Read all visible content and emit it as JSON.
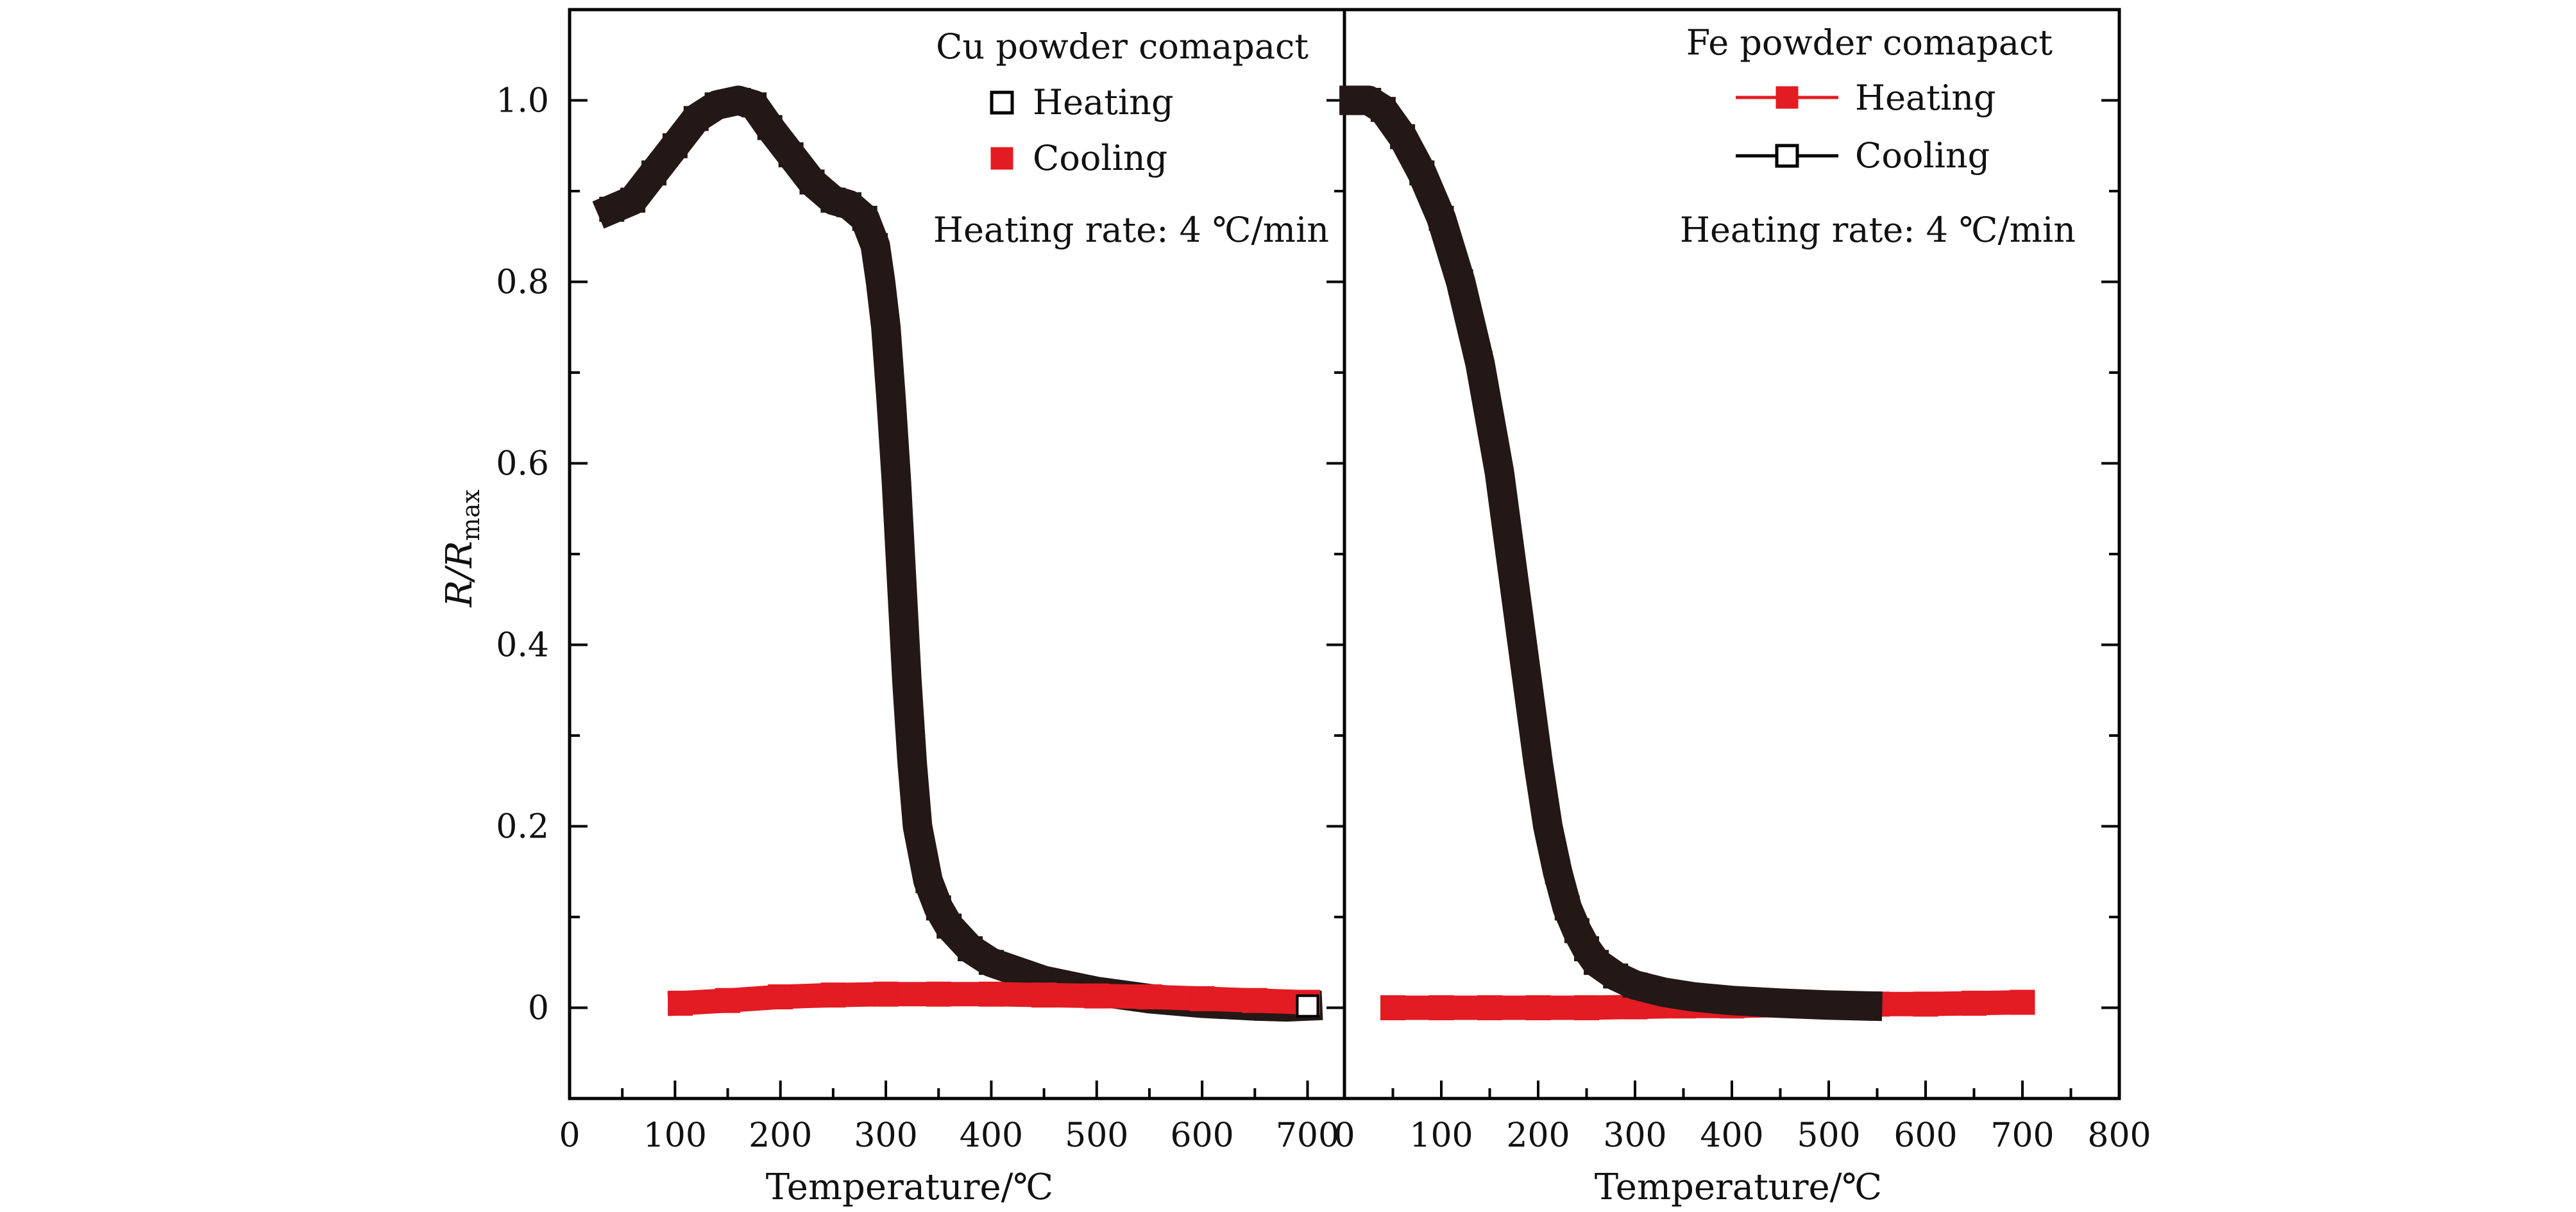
{
  "figure": {
    "ylabel_main": "R/R",
    "ylabel_sub": "max",
    "ylim": [
      -0.1,
      1.1
    ],
    "yticks": [
      0,
      0.2,
      0.4,
      0.6,
      0.8,
      1.0
    ],
    "ytick_labels": [
      "0",
      "0.2",
      "0.4",
      "0.6",
      "0.8",
      "1.0"
    ]
  },
  "colors": {
    "heating_cu": "#231816",
    "cooling_cu": "#e31b23",
    "heating_fe": "#e31b23",
    "cooling_fe": "#231816",
    "axis": "#000000"
  },
  "chart_data": [
    {
      "type": "scatter",
      "title": "Cu powder comapact",
      "annotation": "Heating rate: 4 ℃/min",
      "xlabel": "Temperature/℃",
      "ylabel": "R/R_max",
      "xlim": [
        0,
        735
      ],
      "xticks": [
        0,
        100,
        200,
        300,
        400,
        500,
        600,
        700
      ],
      "xtick_labels": [
        "0",
        "100",
        "200",
        "300",
        "400",
        "500",
        "600",
        "700"
      ],
      "ylim": [
        -0.1,
        1.1
      ],
      "series": [
        {
          "name": "Heating",
          "marker": "hollow-square",
          "line": false,
          "x": [
            40,
            60,
            80,
            100,
            120,
            140,
            160,
            175,
            190,
            210,
            230,
            250,
            265,
            280,
            290,
            295,
            300,
            305,
            310,
            315,
            320,
            325,
            330,
            340,
            350,
            360,
            380,
            400,
            450,
            500,
            550,
            600,
            650,
            680,
            700
          ],
          "y": [
            0.88,
            0.89,
            0.92,
            0.95,
            0.98,
            0.995,
            1.0,
            0.995,
            0.97,
            0.94,
            0.91,
            0.89,
            0.885,
            0.87,
            0.84,
            0.8,
            0.75,
            0.67,
            0.58,
            0.47,
            0.36,
            0.27,
            0.2,
            0.14,
            0.11,
            0.09,
            0.065,
            0.05,
            0.03,
            0.018,
            0.01,
            0.005,
            0.002,
            0.001,
            0.002
          ]
        },
        {
          "name": "Cooling",
          "marker": "filled-square",
          "line": false,
          "x": [
            105,
            150,
            200,
            250,
            300,
            350,
            400,
            450,
            500,
            550,
            600,
            650,
            700
          ],
          "y": [
            0.005,
            0.008,
            0.012,
            0.014,
            0.015,
            0.015,
            0.015,
            0.014,
            0.013,
            0.012,
            0.01,
            0.008,
            0.006
          ]
        }
      ]
    },
    {
      "type": "scatter",
      "title": "Fe powder comapact",
      "annotation": "Heating rate: 4 ℃/min",
      "xlabel": "Temperature/℃",
      "ylabel": "R/R_max",
      "xlim": [
        0,
        800
      ],
      "xticks": [
        0,
        100,
        200,
        300,
        400,
        500,
        600,
        700,
        800
      ],
      "xtick_labels": [
        "0",
        "100",
        "200",
        "300",
        "400",
        "500",
        "600",
        "700",
        "800"
      ],
      "ylim": [
        -0.1,
        1.1
      ],
      "series": [
        {
          "name": "Heating",
          "marker": "filled-square",
          "line": true,
          "x": [
            50,
            100,
            150,
            200,
            250,
            300,
            350,
            400,
            450,
            500,
            550,
            600,
            650,
            700
          ],
          "y": [
            0.0,
            0.0,
            0.0,
            0.0,
            0.0,
            0.001,
            0.002,
            0.002,
            0.003,
            0.003,
            0.004,
            0.004,
            0.005,
            0.006
          ]
        },
        {
          "name": "Cooling",
          "marker": "hollow-square",
          "line": true,
          "x": [
            10,
            25,
            40,
            60,
            80,
            100,
            120,
            140,
            160,
            170,
            180,
            190,
            200,
            210,
            220,
            230,
            240,
            250,
            260,
            280,
            300,
            330,
            360,
            400,
            450,
            500,
            540
          ],
          "y": [
            1.0,
            1.0,
            0.99,
            0.96,
            0.92,
            0.87,
            0.8,
            0.71,
            0.59,
            0.51,
            0.43,
            0.35,
            0.27,
            0.2,
            0.15,
            0.11,
            0.085,
            0.065,
            0.05,
            0.035,
            0.025,
            0.017,
            0.012,
            0.008,
            0.005,
            0.003,
            0.002
          ]
        }
      ]
    }
  ]
}
